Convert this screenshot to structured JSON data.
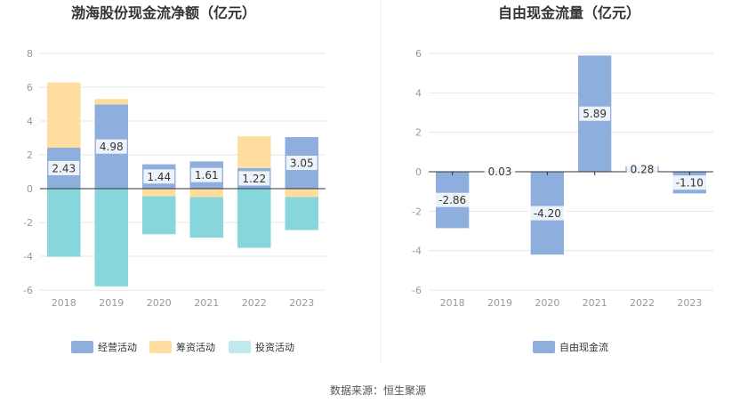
{
  "source_text": "数据来源：恒生聚源",
  "colors": {
    "operating": "#8eaedd",
    "financing": "#ffdd9e",
    "investing": "#87d6db",
    "investing_legend": "#bfe9ec",
    "fcf": "#8eaedd",
    "label_bg": "#ffffff",
    "axis": "#333333",
    "grid": "#e6e6e6"
  },
  "chart_data": [
    {
      "type": "bar",
      "stacked": true,
      "title": "渤海股份现金流净额（亿元）",
      "categories": [
        "2018",
        "2019",
        "2020",
        "2021",
        "2022",
        "2023"
      ],
      "ylim": [
        -6,
        8
      ],
      "yticks": [
        -6,
        -4,
        -2,
        0,
        2,
        4,
        6,
        8
      ],
      "grid": true,
      "legend_position": "bottom",
      "series": [
        {
          "name": "经营活动",
          "values": [
            2.43,
            4.98,
            1.44,
            1.61,
            1.22,
            3.05
          ],
          "labels": [
            "2.43",
            "4.98",
            "1.44",
            "1.61",
            "1.22",
            "3.05"
          ]
        },
        {
          "name": "筹资活动",
          "values": [
            3.85,
            0.32,
            -0.45,
            -0.5,
            1.88,
            -0.5
          ]
        },
        {
          "name": "投资活动",
          "values": [
            -4.03,
            -5.78,
            -2.25,
            -2.4,
            -3.5,
            -1.95
          ]
        }
      ]
    },
    {
      "type": "bar",
      "title": "自由现金流量（亿元）",
      "categories": [
        "2018",
        "2019",
        "2020",
        "2021",
        "2022",
        "2023"
      ],
      "ylim": [
        -6,
        6
      ],
      "yticks": [
        -6,
        -4,
        -2,
        0,
        2,
        4,
        6
      ],
      "grid": true,
      "legend_position": "bottom",
      "series": [
        {
          "name": "自由现金流",
          "values": [
            -2.86,
            0.03,
            -4.2,
            5.89,
            0.28,
            -1.1
          ],
          "labels": [
            "-2.86",
            "0.03",
            "-4.20",
            "5.89",
            "0.28",
            "-1.10"
          ]
        }
      ]
    }
  ]
}
